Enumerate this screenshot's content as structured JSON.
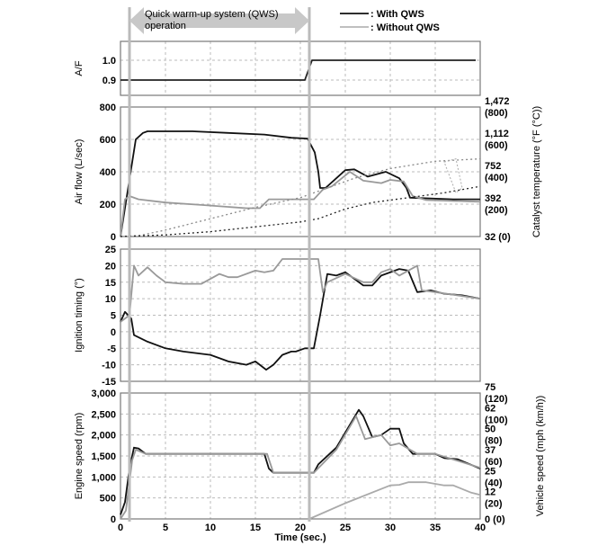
{
  "chart_data": {
    "type": "line",
    "xlabel": "Time (sec.)",
    "xlim": [
      0,
      40
    ],
    "xticks": [
      0,
      5,
      10,
      15,
      20,
      25,
      30,
      35,
      40
    ],
    "grid": true,
    "legend_placement": "top-right",
    "legend": [
      {
        "label": ": With QWS",
        "color": "#111111"
      },
      {
        "label": ": Without QWS",
        "color": "#999999"
      }
    ],
    "annotation": {
      "text_line1": "Quick warm-up system (QWS)",
      "text_line2": "operation",
      "from": 1,
      "to": 21,
      "color": "#c8c8c8"
    },
    "markers_x": [
      1,
      21
    ],
    "panels": [
      {
        "id": "af",
        "ylabel": "A/F",
        "ylim": [
          0.85,
          1.12
        ],
        "yticks": [
          0.9,
          1.0
        ],
        "ytick_labels": [
          "0.9",
          "1.0"
        ],
        "series": [
          {
            "name": "With QWS",
            "color": "#222222",
            "x": [
              0,
              20.5,
              21.3,
              39.5
            ],
            "y": [
              0.9,
              0.9,
              1.0,
              1.0
            ]
          }
        ]
      },
      {
        "id": "airflow",
        "ylabel": "Air flow (L/sec)",
        "ylim": [
          0,
          800
        ],
        "yticks": [
          0,
          200,
          400,
          600,
          800
        ],
        "ytick_labels": [
          "0",
          "200",
          "400",
          "600",
          "800"
        ],
        "ylabel_right": "Catalyst temperature (°F (°C))",
        "yticks_right": [
          0,
          200,
          400,
          600,
          800
        ],
        "ytick_labels_right": [
          [
            "32 (0)"
          ],
          [
            "392",
            "(200)"
          ],
          [
            "752",
            "(400)"
          ],
          [
            "1,112",
            "(600)"
          ],
          [
            "1,472",
            "(800)"
          ]
        ],
        "series": [
          {
            "name": "Air flow with QWS",
            "color": "#111111",
            "x": [
              0,
              1.7,
              2.5,
              3,
              8,
              12,
              16,
              19,
              20.8,
              21.6,
              22,
              22.2,
              22.8,
              25,
              26,
              27.5,
              29.5,
              31,
              31.8,
              32.2,
              37,
              40
            ],
            "y": [
              0,
              600,
              640,
              650,
              650,
              640,
              630,
              610,
              605,
              520,
              400,
              300,
              300,
              410,
              415,
              370,
              400,
              360,
              300,
              240,
              230,
              230
            ]
          },
          {
            "name": "Air flow without QWS",
            "color": "#999999",
            "x": [
              0,
              0.5,
              1,
              2,
              5,
              9,
              14,
              15.5,
              16.5,
              21.5,
              22.5,
              23.5,
              25.5,
              27,
              29,
              30,
              31.5,
              32.5,
              34,
              40
            ],
            "y": [
              0,
              230,
              250,
              230,
              210,
              195,
              175,
              175,
              230,
              230,
              290,
              310,
              400,
              345,
              330,
              350,
              340,
              250,
              225,
              215
            ]
          },
          {
            "name": "Catalyst temp with QWS",
            "color": "#888888",
            "dash": "2,3",
            "x": [
              0,
              2,
              5,
              10,
              15,
              20,
              23,
              26,
              30,
              35,
              40
            ],
            "y": [
              0,
              5,
              40,
              110,
              180,
              240,
              300,
              360,
              420,
              465,
              480
            ]
          },
          {
            "name": "Catalyst temp without QWS",
            "color": "#222222",
            "dash": "2,3",
            "x": [
              0,
              5,
              10,
              15,
              20,
              22,
              25,
              28,
              32,
              36,
              40
            ],
            "y": [
              0,
              10,
              30,
              60,
              90,
              110,
              170,
              210,
              240,
              270,
              310
            ]
          }
        ]
      },
      {
        "id": "ignition",
        "ylabel": "Ignition timing (°)",
        "ylim": [
          -15,
          25
        ],
        "yticks": [
          -15,
          -10,
          -5,
          0,
          5,
          10,
          15,
          20,
          25
        ],
        "ytick_labels": [
          "-15",
          "-10",
          "-5",
          "0",
          "5",
          "10",
          "15",
          "20",
          "25"
        ],
        "series": [
          {
            "name": "With QWS",
            "color": "#111111",
            "x": [
              0,
              0.5,
              1.2,
              1.5,
              3,
              5,
              7,
              10,
              12,
              14,
              15,
              16.2,
              17,
              18,
              19,
              19.5,
              20.5,
              21.5,
              22.2,
              23,
              24,
              25,
              27,
              28,
              29,
              31,
              32,
              33,
              34.5,
              36,
              38,
              40
            ],
            "y": [
              3,
              6,
              4,
              -1,
              -3,
              -5,
              -6,
              -7,
              -9,
              -10,
              -9,
              -11.5,
              -10,
              -7,
              -6,
              -6,
              -5,
              -5,
              5,
              17.5,
              17,
              18,
              14,
              14,
              17,
              19,
              18.5,
              12,
              12.5,
              11.5,
              11,
              10
            ]
          },
          {
            "name": "Without QWS",
            "color": "#999999",
            "x": [
              0,
              1,
              1.5,
              2,
              3,
              4,
              5,
              7,
              9,
              11,
              12,
              13,
              15,
              16,
              17,
              18,
              22,
              22.5,
              23,
              25,
              27,
              28,
              29,
              30,
              31,
              33,
              33.5,
              35,
              40
            ],
            "y": [
              3,
              5,
              20,
              17,
              19.5,
              17,
              15,
              14.5,
              14.5,
              17.5,
              16.5,
              16.5,
              18.5,
              18,
              18.5,
              22,
              22,
              12,
              15,
              17.5,
              15,
              15,
              18,
              19,
              17,
              20,
              12.5,
              12,
              10
            ]
          }
        ]
      },
      {
        "id": "engine",
        "ylabel": "Engine speed (rpm)",
        "ylim": [
          0,
          3000
        ],
        "yticks": [
          0,
          500,
          1000,
          1500,
          2000,
          2500,
          3000
        ],
        "ytick_labels": [
          "0",
          "500",
          "1,000",
          "1,500",
          "2,000",
          "2,500",
          "3,000"
        ],
        "ylabel_right": "Vehicle speed (mph (km/h))",
        "yticks_right": [
          0,
          500,
          1000,
          1500,
          2000,
          2500,
          3000
        ],
        "ytick_labels_right": [
          [
            "0 (0)"
          ],
          [
            "12",
            "(20)"
          ],
          [
            "25",
            "(40)"
          ],
          [
            "37",
            "(60)"
          ],
          [
            "50",
            "(80)"
          ],
          [
            "62",
            "(100)"
          ],
          [
            "75",
            "(120)"
          ]
        ],
        "series": [
          {
            "name": "Engine speed with QWS",
            "color": "#111111",
            "x": [
              0,
              0.5,
              1,
              1.5,
              2,
              2.8,
              16,
              16.5,
              17,
              21.5,
              22,
              24,
              26.5,
              27,
              28,
              29,
              30,
              31,
              31.5,
              32.5,
              35,
              36,
              37.5,
              40
            ],
            "y": [
              100,
              400,
              1200,
              1700,
              1680,
              1550,
              1550,
              1200,
              1100,
              1100,
              1300,
              1700,
              2600,
              2450,
              1950,
              2000,
              2150,
              2150,
              1800,
              1550,
              1550,
              1450,
              1420,
              1200
            ]
          },
          {
            "name": "Engine speed without QWS",
            "color": "#999999",
            "x": [
              0,
              0.6,
              1.3,
              1.7,
              2.8,
              16.3,
              17,
              21.5,
              24,
              26.2,
              27.2,
              29,
              30,
              31,
              33,
              35,
              40
            ],
            "y": [
              0,
              200,
              1400,
              1650,
              1550,
              1550,
              1100,
              1100,
              1650,
              2450,
              1900,
              2000,
              1750,
              1800,
              1550,
              1550,
              1220
            ]
          },
          {
            "name": "Vehicle speed without QWS (km/h)",
            "color": "#aaaaaa",
            "unit": "km/h",
            "x": [
              21,
              25,
              30,
              31,
              32,
              34,
              36,
              37,
              39,
              40
            ],
            "y": [
              0,
              15,
              32,
              32.5,
              35,
              35,
              32,
              32,
              25,
              23
            ]
          }
        ]
      }
    ]
  }
}
